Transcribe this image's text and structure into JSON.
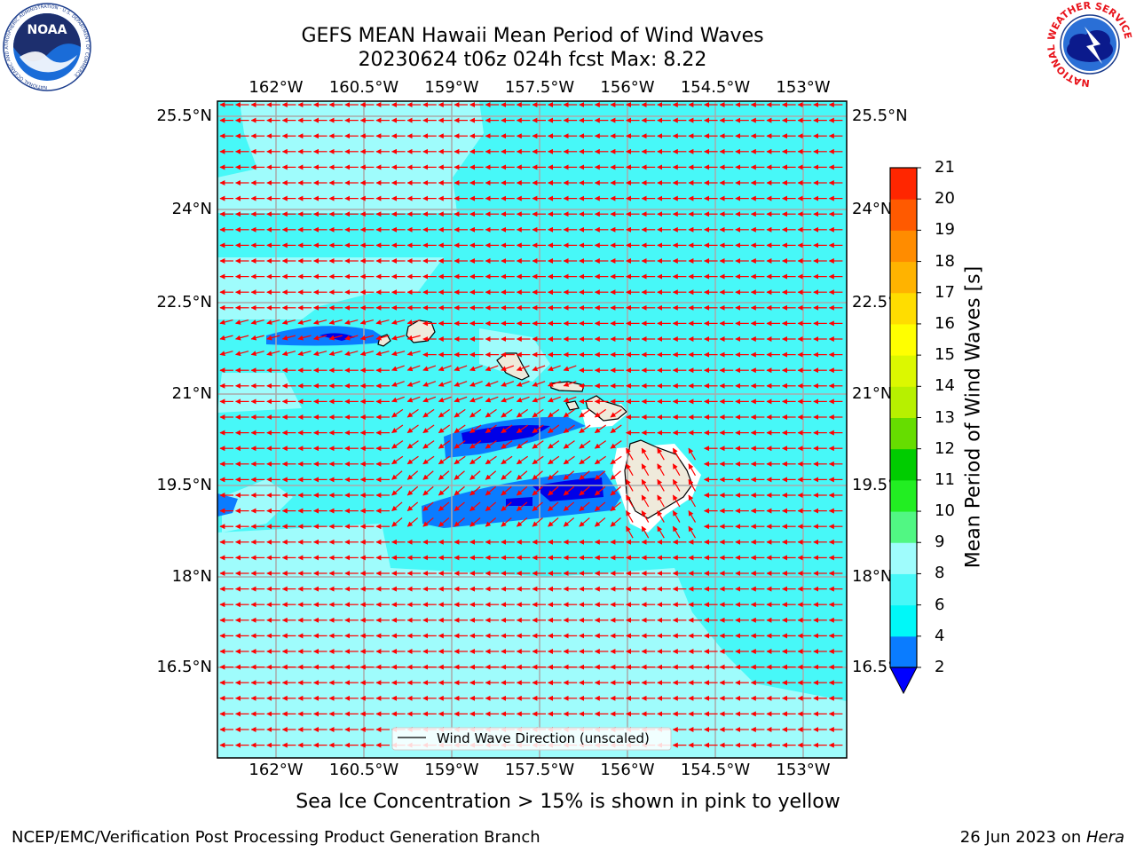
{
  "header": {
    "title_line1": "GEFS MEAN Hawaii Mean Period of Wind Waves",
    "title_line2": "20230624 t06z 024h fcst   Max: 8.22"
  },
  "logos": {
    "noaa_text": "NOAA",
    "noaa_ring": "NATIONAL OCEANIC AND ATMOSPHERIC ADMINISTRATION · U.S. DEPARTMENT OF COMMERCE",
    "nws_ring": "NATIONAL WEATHER SERVICE"
  },
  "map": {
    "lon_labels": [
      "162°W",
      "160.5°W",
      "159°W",
      "157.5°W",
      "156°W",
      "154.5°W",
      "153°W"
    ],
    "lat_labels": [
      "25.5°N",
      "24°N",
      "22.5°N",
      "21°N",
      "19.5°N",
      "18°N",
      "16.5°N"
    ],
    "colors": {
      "light_cyan": "#9ffcfc",
      "cyan": "#47f8f8",
      "blue": "#0a7cff",
      "dark_blue": "#0000e8",
      "land": "#efeadb",
      "arrow": "#ff0000",
      "grid": "#aaaaaa"
    },
    "legend_label": "Wind Wave Direction (unscaled)"
  },
  "colorbar": {
    "label": "Mean Period of Wind Waves [s]",
    "ticks": [
      "2",
      "4",
      "6",
      "8",
      "9",
      "10",
      "11",
      "12",
      "13",
      "14",
      "15",
      "16",
      "17",
      "18",
      "19",
      "20",
      "21"
    ],
    "colors": [
      "#0a7cff",
      "#00f8f8",
      "#47f8f8",
      "#9ffcfc",
      "#51f783",
      "#22ee22",
      "#00cc00",
      "#66dd00",
      "#b7f000",
      "#dcf800",
      "#ffff00",
      "#ffdd00",
      "#ffb300",
      "#ff8c00",
      "#ff5a00",
      "#ff2600",
      "#ff0000"
    ],
    "extend_color": "#0000ff"
  },
  "notes": {
    "sea_ice": "Sea Ice Concentration > 15% is shown in pink to yellow"
  },
  "footer": {
    "left": "NCEP/EMC/Verification Post Processing Product Generation Branch",
    "date": "26 Jun 2023 on ",
    "host": "Hera"
  }
}
